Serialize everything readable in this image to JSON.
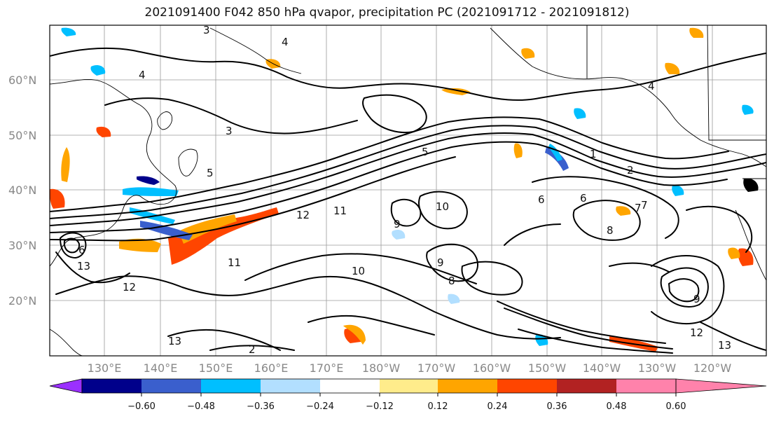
{
  "title": "2021091400 F042 850 hPa qvapor, precipitation PC (2021091712 - 2021091812)",
  "map": {
    "lat_labels": [
      "60°N",
      "50°N",
      "40°N",
      "30°N",
      "20°N"
    ],
    "lon_labels": [
      "130°E",
      "140°E",
      "150°E",
      "160°E",
      "170°E",
      "180°W",
      "170°W",
      "160°W",
      "150°W",
      "140°W",
      "130°W",
      "120°W"
    ],
    "contour_labels": [
      "3",
      "4",
      "4",
      "3",
      "4",
      "5",
      "5",
      "12",
      "11",
      "10",
      "9",
      "8",
      "7",
      "6",
      "13",
      "12",
      "11",
      "10",
      "9",
      "13",
      "12",
      "13",
      "2",
      "1",
      "2",
      "6",
      "7",
      "8",
      "9",
      "6"
    ],
    "colors": {
      "coast": "#000000",
      "contour": "#000000",
      "grid": "#9a9a9a"
    }
  },
  "colorbar": {
    "colors": [
      "#9b30ff",
      "#00008b",
      "#3a5fcd",
      "#00bfff",
      "#b2dfff",
      "#ffffff",
      "#ffec8b",
      "#ffa500",
      "#ff4500",
      "#b22222",
      "#ff82ab"
    ],
    "tick_labels": [
      "−0.60",
      "−0.48",
      "−0.36",
      "−0.24",
      "−0.12",
      "0.12",
      "0.24",
      "0.36",
      "0.48",
      "0.60"
    ]
  }
}
